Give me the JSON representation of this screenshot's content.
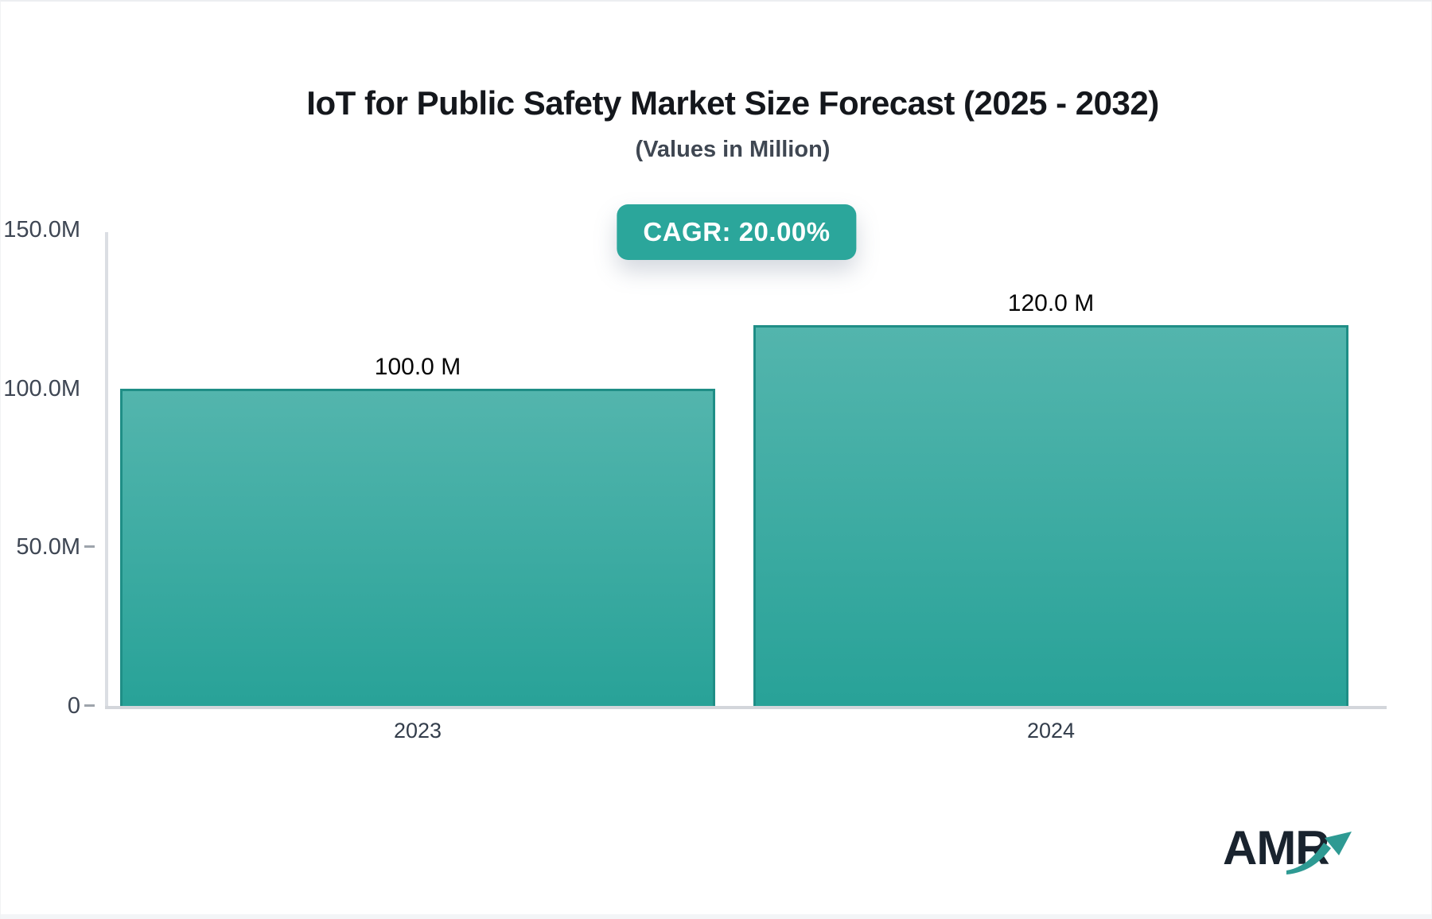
{
  "header": {
    "title": "IoT for Public Safety Market Size Forecast (2025 - 2032)",
    "subtitle": "(Values in Million)",
    "cagr_label": "CAGR: 20.00%"
  },
  "footer": {
    "logo_text": "AMR"
  },
  "colors": {
    "badge_teal": "#2BA69B",
    "bar_gradient_top": "#53B5AD",
    "bar_gradient_bottom": "#28A298",
    "bar_border": "#1F8E86",
    "axis_gray": "#D6D9DE",
    "tick_text": "#3E4653",
    "value_label_text": "#060606",
    "logo_navy": "#19232E",
    "logo_arrow_teal": "#2E9A93"
  },
  "chart_data": {
    "type": "bar",
    "title": "IoT for Public Safety Market Size Forecast (2025 - 2032)",
    "subtitle": "(Values in Million)",
    "cagr": "20.00%",
    "unit": "Million",
    "categories": [
      "2023",
      "2024"
    ],
    "values": [
      100.0,
      120.0
    ],
    "value_labels": [
      "100.0 M",
      "120.0 M"
    ],
    "xlabel": "",
    "ylabel": "",
    "ylim": [
      0,
      150
    ],
    "yticks": [
      {
        "value": 150,
        "label": "150.0M",
        "dash": false
      },
      {
        "value": 100,
        "label": "100.0M",
        "dash": false
      },
      {
        "value": 50,
        "label": "50.0M",
        "dash": true
      },
      {
        "value": 0,
        "label": "0",
        "dash": true
      }
    ],
    "grid": false,
    "legend": false
  }
}
